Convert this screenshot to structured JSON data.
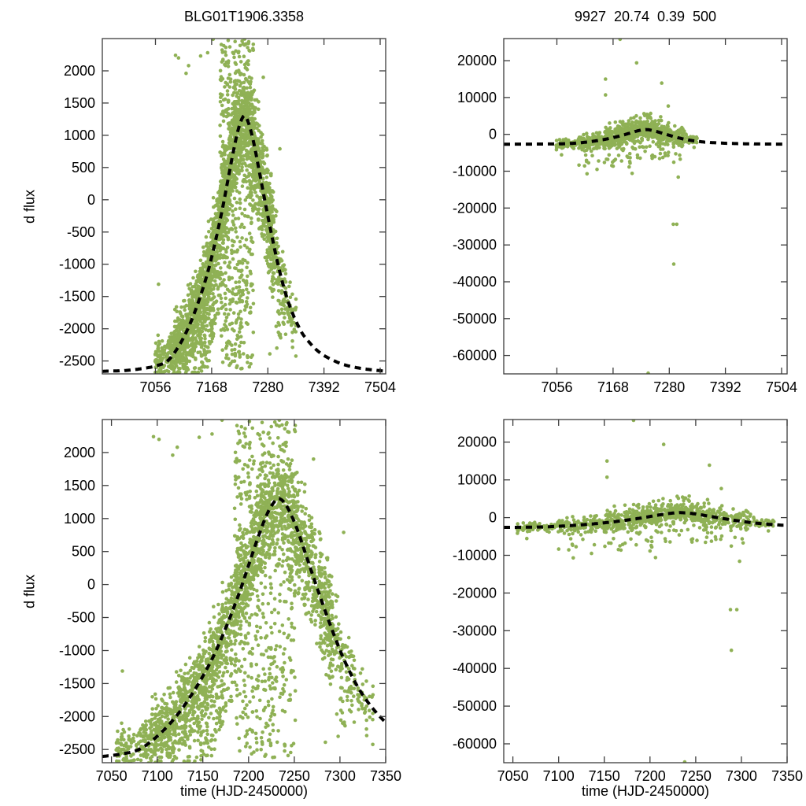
{
  "figure": {
    "left_title": "BLG01T1906.3358",
    "right_title": "9927  20.74  0.39  500",
    "y_axis_label": "d flux",
    "x_axis_label": "time (HJD-2450000)",
    "colors": {
      "points": "#8fb155",
      "curve": "#000000",
      "frame": "#3c3c3c",
      "text": "#000000",
      "background": "#ffffff"
    }
  },
  "chart_data": {
    "type": "scatter",
    "title": "BLG01T1906.3358",
    "subtitle": "9927  20.74  0.39  500",
    "xlabel": "time (HJD-2450000)",
    "ylabel": "d flux",
    "legend": "none",
    "grid": false,
    "point_radius": 2.3,
    "curve_style": {
      "dash": [
        8,
        6
      ],
      "width": 4
    },
    "model_curve_points": [
      [
        6950,
        -2660
      ],
      [
        7000,
        -2645
      ],
      [
        7040,
        -2605
      ],
      [
        7060,
        -2570
      ],
      [
        7080,
        -2500
      ],
      [
        7100,
        -2300
      ],
      [
        7120,
        -2010
      ],
      [
        7140,
        -1620
      ],
      [
        7160,
        -1130
      ],
      [
        7175,
        -660
      ],
      [
        7190,
        -120
      ],
      [
        7200,
        290
      ],
      [
        7210,
        700
      ],
      [
        7220,
        1060
      ],
      [
        7228,
        1250
      ],
      [
        7234,
        1300
      ],
      [
        7242,
        1180
      ],
      [
        7252,
        880
      ],
      [
        7262,
        480
      ],
      [
        7272,
        70
      ],
      [
        7282,
        -330
      ],
      [
        7292,
        -710
      ],
      [
        7302,
        -1060
      ],
      [
        7312,
        -1360
      ],
      [
        7322,
        -1610
      ],
      [
        7332,
        -1810
      ],
      [
        7342,
        -1975
      ],
      [
        7352,
        -2110
      ],
      [
        7382,
        -2360
      ],
      [
        7422,
        -2530
      ],
      [
        7462,
        -2610
      ],
      [
        7515,
        -2660
      ]
    ],
    "panels": [
      {
        "id": "tl",
        "title": "BLG01T1906.3358",
        "x_range": [
          6950,
          7515
        ],
        "y_range": [
          -2700,
          2500
        ],
        "x_ticks": [
          7056,
          7168,
          7280,
          7392,
          7504
        ],
        "y_ticks": [
          -2500,
          -2000,
          -1500,
          -1000,
          -500,
          0,
          500,
          1000,
          1500,
          2000
        ],
        "y_label": "d flux",
        "x_label": "",
        "dataset": "dflux_small"
      },
      {
        "id": "tr",
        "title": "9927  20.74  0.39  500",
        "x_range": [
          6950,
          7515
        ],
        "y_range": [
          -65000,
          26000
        ],
        "x_ticks": [
          7056,
          7168,
          7280,
          7392,
          7504
        ],
        "y_ticks": [
          -60000,
          -50000,
          -40000,
          -30000,
          -20000,
          -10000,
          0,
          10000,
          20000
        ],
        "y_label": "",
        "x_label": "",
        "dataset": "dflux_large"
      },
      {
        "id": "bl",
        "title": "",
        "x_range": [
          7040,
          7350
        ],
        "y_range": [
          -2700,
          2500
        ],
        "x_ticks": [
          7050,
          7100,
          7150,
          7200,
          7250,
          7300,
          7350
        ],
        "y_ticks": [
          -2500,
          -2000,
          -1500,
          -1000,
          -500,
          0,
          500,
          1000,
          1500,
          2000
        ],
        "y_label": "d flux",
        "x_label": "time (HJD-2450000)",
        "dataset": "dflux_small"
      },
      {
        "id": "br",
        "title": "",
        "x_range": [
          7040,
          7350
        ],
        "y_range": [
          -65000,
          26000
        ],
        "x_ticks": [
          7050,
          7100,
          7150,
          7200,
          7250,
          7300,
          7350
        ],
        "y_ticks": [
          -60000,
          -50000,
          -40000,
          -30000,
          -20000,
          -10000,
          0,
          10000,
          20000
        ],
        "y_label": "",
        "x_label": "time (HJD-2450000)",
        "dataset": "dflux_large"
      }
    ],
    "datasets": {
      "dflux_small": {
        "seed": 1234,
        "regions": [
          {
            "t0": 7056,
            "t1": 7085,
            "step": [
              2,
              3.5
            ],
            "n": [
              6,
              13
            ],
            "sigma": 190,
            "streak_p": 0.15,
            "streak": [
              -430,
              260
            ],
            "xjit": 1.6
          },
          {
            "t0": 7085,
            "t1": 7130,
            "step": [
              1.5,
              3
            ],
            "n": [
              13,
              24
            ],
            "sigma": 260,
            "streak_p": 0.3,
            "streak": [
              -650,
              330
            ],
            "xjit": 1.6
          },
          {
            "t0": 7130,
            "t1": 7185,
            "step": [
              1,
              2.5
            ],
            "n": [
              16,
              28
            ],
            "sigma": 300,
            "streak_p": 0.45,
            "streak": [
              -1450,
              430
            ],
            "xjit": 1.4
          },
          {
            "t0": 7185,
            "t1": 7252,
            "step": [
              1,
              2
            ],
            "n": [
              20,
              36
            ],
            "sigma": 380,
            "streak_p": 0.45,
            "streak_abs": [
              -2620,
              2520
            ],
            "xjit": 1.2
          },
          {
            "t0": 7252,
            "t1": 7292,
            "step": [
              1,
              2.5
            ],
            "n": [
              13,
              24
            ],
            "sigma": 320,
            "streak_p": 0.35,
            "streak": [
              -950,
              950
            ],
            "xjit": 1.4
          },
          {
            "t0": 7292,
            "t1": 7316,
            "step": [
              1.5,
              3
            ],
            "n": [
              7,
              14
            ],
            "sigma": 300,
            "streak_p": 0.3,
            "streak": [
              -1150,
              350
            ],
            "xjit": 1.5
          },
          {
            "t0": 7316,
            "t1": 7338,
            "step": [
              2,
              3.5
            ],
            "n": [
              3,
              8
            ],
            "sigma": 260,
            "streak_p": 0.25,
            "streak": [
              -620,
              260
            ],
            "xjit": 1.6
          }
        ],
        "outliers": [
          [
            7062,
            -1310
          ],
          [
            7096,
            2240
          ],
          [
            7102,
            2200
          ],
          [
            7117,
            1960
          ],
          [
            7122,
            2080
          ],
          [
            7146,
            2230
          ],
          [
            7160,
            2280
          ],
          [
            7171,
            2490
          ],
          [
            7271,
            1900
          ],
          [
            7304,
            790
          ],
          [
            7284,
            -2390
          ],
          [
            7298,
            -2300
          ],
          [
            7329,
            -2190
          ]
        ]
      },
      "dflux_large": {
        "seed": 99,
        "regions": [
          {
            "t0": 7055,
            "t1": 7100,
            "step": [
              2,
              3.5
            ],
            "n": [
              2,
              5
            ],
            "sigma": 600,
            "streak_p": 0.1,
            "streak": [
              -3200,
              1600
            ],
            "xjit": 1.5
          },
          {
            "t0": 7100,
            "t1": 7150,
            "step": [
              1.5,
              3
            ],
            "n": [
              4,
              8
            ],
            "sigma": 900,
            "streak_p": 0.18,
            "streak": [
              -6500,
              2600
            ],
            "xjit": 1.5
          },
          {
            "t0": 7150,
            "t1": 7265,
            "step": [
              1,
              2
            ],
            "n": [
              5,
              9
            ],
            "sigma": 1300,
            "streak_p": 0.22,
            "streak": [
              -8500,
              4600
            ],
            "xjit": 1.2
          },
          {
            "t0": 7265,
            "t1": 7310,
            "step": [
              1.5,
              3
            ],
            "n": [
              4,
              8
            ],
            "sigma": 1200,
            "streak_p": 0.2,
            "streak": [
              -7200,
              3100
            ],
            "xjit": 1.5
          },
          {
            "t0": 7310,
            "t1": 7336,
            "step": [
              2,
              3.5
            ],
            "n": [
              2,
              5
            ],
            "sigma": 700,
            "streak_p": 0.1,
            "streak": [
              -2600,
              1500
            ],
            "xjit": 1.5
          }
        ],
        "outliers": [
          [
            7182,
            25800
          ],
          [
            7215,
            19400
          ],
          [
            7153,
            15000
          ],
          [
            7153,
            10700
          ],
          [
            7265,
            13900
          ],
          [
            7278,
            7700
          ],
          [
            7116,
            -10700
          ],
          [
            7136,
            -9500
          ],
          [
            7200,
            -8850
          ],
          [
            7206,
            -10600
          ],
          [
            7298,
            -11600
          ],
          [
            7288,
            -24400
          ],
          [
            7295,
            -24400
          ],
          [
            7289,
            -35200
          ],
          [
            7238,
            -64800
          ]
        ]
      }
    }
  }
}
